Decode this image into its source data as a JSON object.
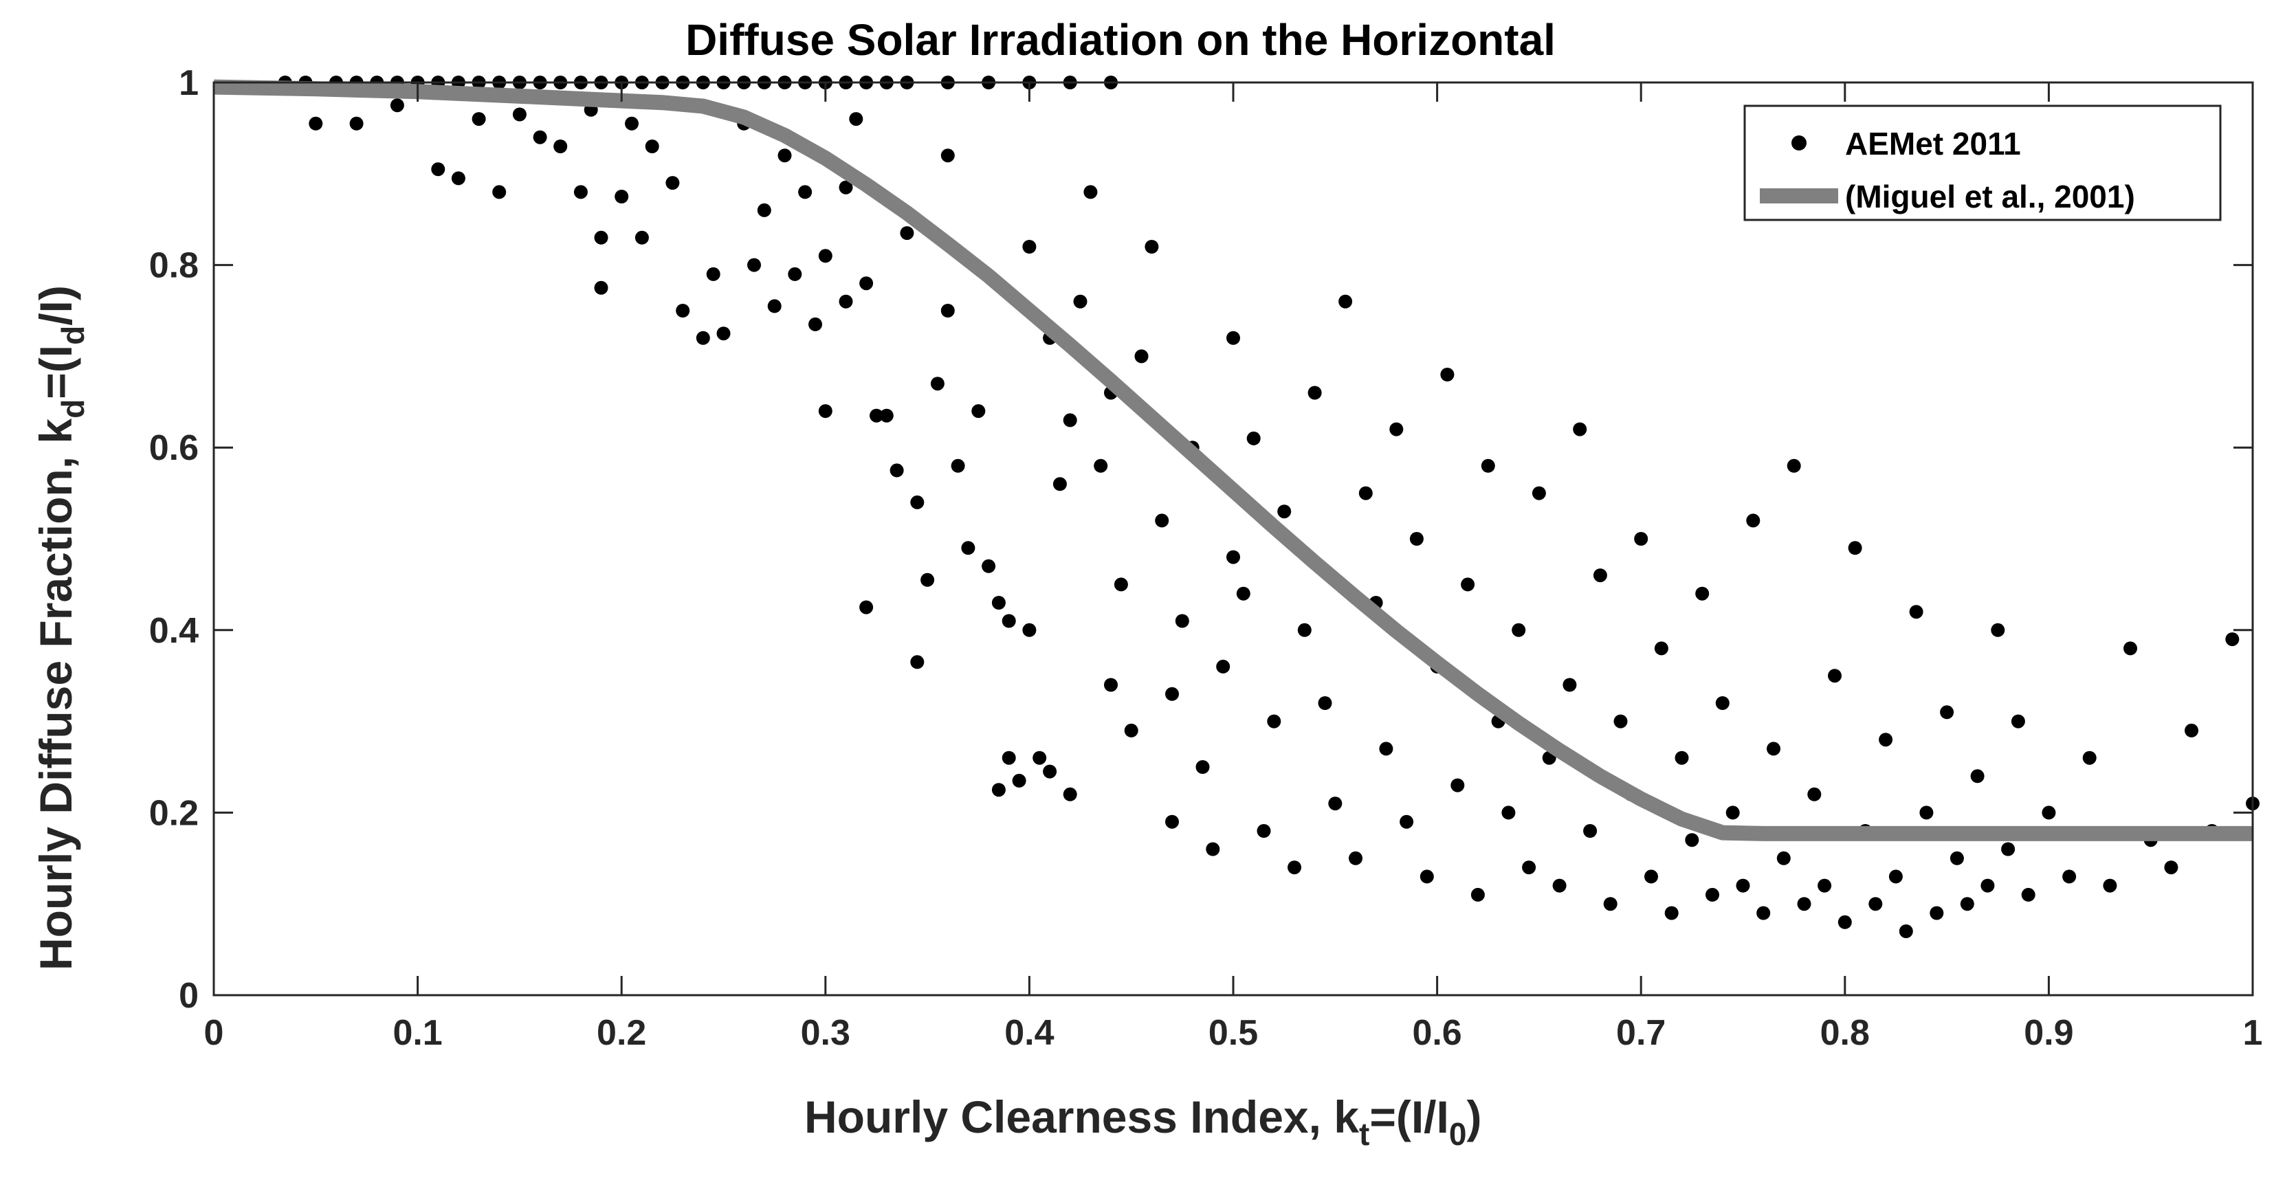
{
  "chart_data": {
    "type": "scatter",
    "title": "Diffuse Solar Irradiation on the Horizontal",
    "xlabel": {
      "main": "Hourly Clearness Index, k",
      "sub1": "t",
      "mid": "=(I/I",
      "sub2": "0",
      "end": ")"
    },
    "ylabel": {
      "main": "Hourly Diffuse Fraction, k",
      "sub1": "d",
      "mid": "=(I",
      "sub2": "d",
      "end": "/I)"
    },
    "xlim": [
      0,
      1
    ],
    "ylim": [
      0,
      1
    ],
    "xticks": [
      "0",
      "0.1",
      "0.2",
      "0.3",
      "0.4",
      "0.5",
      "0.6",
      "0.7",
      "0.8",
      "0.9",
      "1"
    ],
    "yticks": [
      "0",
      "0.2",
      "0.4",
      "0.6",
      "0.8",
      "1"
    ],
    "grid": false,
    "legend_position": "top-right",
    "colors": {
      "points": "#000000",
      "fit": "#808080",
      "axes": "#262626"
    },
    "series": [
      {
        "name": "AEMet 2011",
        "kind": "scatter",
        "points": [
          [
            0.035,
            1.0
          ],
          [
            0.045,
            1.0
          ],
          [
            0.06,
            1.0
          ],
          [
            0.07,
            1.0
          ],
          [
            0.08,
            1.0
          ],
          [
            0.09,
            1.0
          ],
          [
            0.1,
            1.0
          ],
          [
            0.11,
            1.0
          ],
          [
            0.12,
            1.0
          ],
          [
            0.13,
            1.0
          ],
          [
            0.14,
            1.0
          ],
          [
            0.15,
            1.0
          ],
          [
            0.16,
            1.0
          ],
          [
            0.17,
            1.0
          ],
          [
            0.18,
            1.0
          ],
          [
            0.19,
            1.0
          ],
          [
            0.2,
            1.0
          ],
          [
            0.21,
            1.0
          ],
          [
            0.22,
            1.0
          ],
          [
            0.23,
            1.0
          ],
          [
            0.24,
            1.0
          ],
          [
            0.25,
            1.0
          ],
          [
            0.26,
            1.0
          ],
          [
            0.27,
            1.0
          ],
          [
            0.28,
            1.0
          ],
          [
            0.29,
            1.0
          ],
          [
            0.3,
            1.0
          ],
          [
            0.31,
            1.0
          ],
          [
            0.32,
            1.0
          ],
          [
            0.33,
            1.0
          ],
          [
            0.34,
            1.0
          ],
          [
            0.36,
            1.0
          ],
          [
            0.38,
            1.0
          ],
          [
            0.4,
            1.0
          ],
          [
            0.42,
            1.0
          ],
          [
            0.44,
            1.0
          ],
          [
            0.05,
            0.955
          ],
          [
            0.07,
            0.955
          ],
          [
            0.09,
            0.975
          ],
          [
            0.11,
            0.905
          ],
          [
            0.12,
            0.895
          ],
          [
            0.13,
            0.96
          ],
          [
            0.14,
            0.88
          ],
          [
            0.15,
            0.965
          ],
          [
            0.16,
            0.94
          ],
          [
            0.17,
            0.93
          ],
          [
            0.18,
            0.88
          ],
          [
            0.185,
            0.97
          ],
          [
            0.19,
            0.83
          ],
          [
            0.19,
            0.775
          ],
          [
            0.2,
            0.875
          ],
          [
            0.205,
            0.955
          ],
          [
            0.21,
            0.83
          ],
          [
            0.215,
            0.93
          ],
          [
            0.225,
            0.89
          ],
          [
            0.23,
            0.75
          ],
          [
            0.24,
            0.72
          ],
          [
            0.245,
            0.79
          ],
          [
            0.25,
            0.725
          ],
          [
            0.26,
            0.955
          ],
          [
            0.265,
            0.8
          ],
          [
            0.27,
            0.86
          ],
          [
            0.275,
            0.755
          ],
          [
            0.28,
            0.92
          ],
          [
            0.285,
            0.79
          ],
          [
            0.29,
            0.88
          ],
          [
            0.295,
            0.735
          ],
          [
            0.3,
            0.81
          ],
          [
            0.3,
            0.64
          ],
          [
            0.31,
            0.76
          ],
          [
            0.31,
            0.885
          ],
          [
            0.315,
            0.96
          ],
          [
            0.32,
            0.78
          ],
          [
            0.32,
            0.425
          ],
          [
            0.325,
            0.635
          ],
          [
            0.33,
            0.635
          ],
          [
            0.335,
            0.575
          ],
          [
            0.34,
            0.835
          ],
          [
            0.345,
            0.54
          ],
          [
            0.345,
            0.365
          ],
          [
            0.35,
            0.455
          ],
          [
            0.355,
            0.67
          ],
          [
            0.36,
            0.75
          ],
          [
            0.36,
            0.92
          ],
          [
            0.365,
            0.58
          ],
          [
            0.37,
            0.49
          ],
          [
            0.375,
            0.64
          ],
          [
            0.38,
            0.47
          ],
          [
            0.385,
            0.43
          ],
          [
            0.385,
            0.225
          ],
          [
            0.39,
            0.26
          ],
          [
            0.39,
            0.41
          ],
          [
            0.395,
            0.235
          ],
          [
            0.4,
            0.4
          ],
          [
            0.4,
            0.82
          ],
          [
            0.405,
            0.26
          ],
          [
            0.41,
            0.72
          ],
          [
            0.41,
            0.245
          ],
          [
            0.415,
            0.56
          ],
          [
            0.42,
            0.63
          ],
          [
            0.42,
            0.22
          ],
          [
            0.425,
            0.76
          ],
          [
            0.43,
            0.88
          ],
          [
            0.435,
            0.58
          ],
          [
            0.44,
            0.34
          ],
          [
            0.44,
            0.66
          ],
          [
            0.445,
            0.45
          ],
          [
            0.45,
            0.29
          ],
          [
            0.455,
            0.7
          ],
          [
            0.46,
            0.82
          ],
          [
            0.465,
            0.52
          ],
          [
            0.47,
            0.33
          ],
          [
            0.47,
            0.19
          ],
          [
            0.475,
            0.41
          ],
          [
            0.48,
            0.6
          ],
          [
            0.485,
            0.25
          ],
          [
            0.49,
            0.16
          ],
          [
            0.495,
            0.36
          ],
          [
            0.5,
            0.48
          ],
          [
            0.5,
            0.72
          ],
          [
            0.505,
            0.44
          ],
          [
            0.51,
            0.61
          ],
          [
            0.515,
            0.18
          ],
          [
            0.52,
            0.3
          ],
          [
            0.525,
            0.53
          ],
          [
            0.53,
            0.14
          ],
          [
            0.535,
            0.4
          ],
          [
            0.54,
            0.66
          ],
          [
            0.545,
            0.32
          ],
          [
            0.55,
            0.21
          ],
          [
            0.555,
            0.76
          ],
          [
            0.56,
            0.15
          ],
          [
            0.565,
            0.55
          ],
          [
            0.57,
            0.43
          ],
          [
            0.575,
            0.27
          ],
          [
            0.58,
            0.62
          ],
          [
            0.585,
            0.19
          ],
          [
            0.59,
            0.5
          ],
          [
            0.595,
            0.13
          ],
          [
            0.6,
            0.36
          ],
          [
            0.605,
            0.68
          ],
          [
            0.61,
            0.23
          ],
          [
            0.615,
            0.45
          ],
          [
            0.62,
            0.11
          ],
          [
            0.625,
            0.58
          ],
          [
            0.63,
            0.3
          ],
          [
            0.635,
            0.2
          ],
          [
            0.64,
            0.4
          ],
          [
            0.645,
            0.14
          ],
          [
            0.65,
            0.55
          ],
          [
            0.655,
            0.26
          ],
          [
            0.66,
            0.12
          ],
          [
            0.665,
            0.34
          ],
          [
            0.67,
            0.62
          ],
          [
            0.675,
            0.18
          ],
          [
            0.68,
            0.46
          ],
          [
            0.685,
            0.1
          ],
          [
            0.69,
            0.3
          ],
          [
            0.695,
            0.22
          ],
          [
            0.7,
            0.5
          ],
          [
            0.705,
            0.13
          ],
          [
            0.71,
            0.38
          ],
          [
            0.715,
            0.09
          ],
          [
            0.72,
            0.26
          ],
          [
            0.725,
            0.17
          ],
          [
            0.73,
            0.44
          ],
          [
            0.735,
            0.11
          ],
          [
            0.74,
            0.32
          ],
          [
            0.745,
            0.2
          ],
          [
            0.75,
            0.12
          ],
          [
            0.755,
            0.52
          ],
          [
            0.76,
            0.09
          ],
          [
            0.765,
            0.27
          ],
          [
            0.77,
            0.15
          ],
          [
            0.775,
            0.58
          ],
          [
            0.78,
            0.1
          ],
          [
            0.785,
            0.22
          ],
          [
            0.79,
            0.12
          ],
          [
            0.795,
            0.35
          ],
          [
            0.8,
            0.08
          ],
          [
            0.805,
            0.49
          ],
          [
            0.81,
            0.18
          ],
          [
            0.815,
            0.1
          ],
          [
            0.82,
            0.28
          ],
          [
            0.825,
            0.13
          ],
          [
            0.83,
            0.07
          ],
          [
            0.835,
            0.42
          ],
          [
            0.84,
            0.2
          ],
          [
            0.845,
            0.09
          ],
          [
            0.85,
            0.31
          ],
          [
            0.855,
            0.15
          ],
          [
            0.86,
            0.1
          ],
          [
            0.865,
            0.24
          ],
          [
            0.87,
            0.12
          ],
          [
            0.875,
            0.4
          ],
          [
            0.88,
            0.16
          ],
          [
            0.885,
            0.3
          ],
          [
            0.89,
            0.11
          ],
          [
            0.9,
            0.2
          ],
          [
            0.91,
            0.13
          ],
          [
            0.92,
            0.26
          ],
          [
            0.93,
            0.12
          ],
          [
            0.94,
            0.38
          ],
          [
            0.95,
            0.17
          ],
          [
            0.96,
            0.14
          ],
          [
            0.97,
            0.29
          ],
          [
            0.98,
            0.18
          ],
          [
            0.99,
            0.39
          ],
          [
            1.0,
            0.21
          ]
        ]
      },
      {
        "name": "(Miguel et al., 2001)",
        "kind": "line",
        "x": [
          0.0,
          0.05,
          0.1,
          0.15,
          0.2,
          0.22,
          0.24,
          0.26,
          0.28,
          0.3,
          0.32,
          0.34,
          0.36,
          0.38,
          0.4,
          0.42,
          0.44,
          0.46,
          0.48,
          0.5,
          0.52,
          0.54,
          0.56,
          0.58,
          0.6,
          0.62,
          0.64,
          0.66,
          0.68,
          0.7,
          0.72,
          0.74,
          0.76,
          0.8,
          0.85,
          0.9,
          0.95,
          1.0
        ],
        "y": [
          0.995,
          0.993,
          0.99,
          0.985,
          0.98,
          0.978,
          0.974,
          0.962,
          0.942,
          0.917,
          0.888,
          0.857,
          0.823,
          0.788,
          0.75,
          0.712,
          0.673,
          0.633,
          0.593,
          0.553,
          0.513,
          0.474,
          0.436,
          0.399,
          0.364,
          0.33,
          0.298,
          0.268,
          0.24,
          0.215,
          0.193,
          0.178,
          0.177,
          0.177,
          0.177,
          0.177,
          0.177,
          0.177
        ]
      }
    ]
  }
}
